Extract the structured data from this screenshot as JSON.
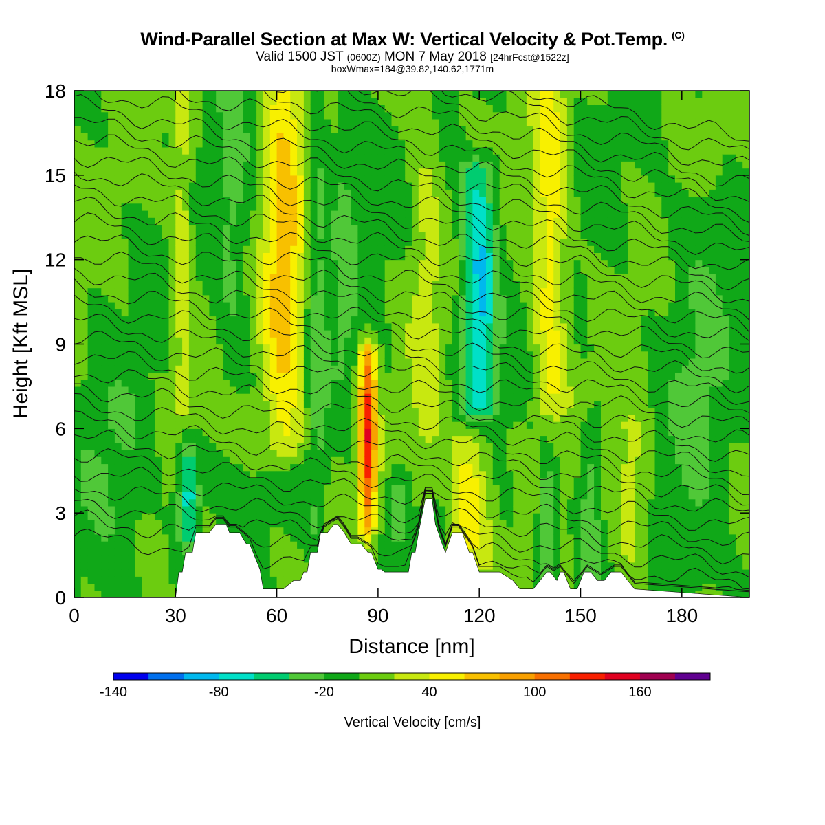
{
  "header": {
    "title": "Wind-Parallel Section at Max W: Vertical Velocity & Pot.Temp.",
    "copyright_mark": "(C)",
    "subtitle_a": "Valid 1500 JST",
    "subtitle_b": "(0600Z)",
    "subtitle_c": "MON 7 May 2018",
    "subtitle_d": "[24hrFcst@1522z]",
    "boxline": "boxWmax=184@39.82,140.62,1771m"
  },
  "chart_data": {
    "type": "heatmap",
    "title": "Wind-Parallel Section at Max W: Vertical Velocity & Pot.Temp.",
    "xlabel": "Distance [nm]",
    "ylabel": "Height [Kft MSL]",
    "xlim": [
      0,
      200
    ],
    "ylim": [
      0,
      18
    ],
    "x_ticks": [
      0,
      30,
      60,
      90,
      120,
      150,
      180
    ],
    "y_ticks": [
      0,
      3,
      6,
      9,
      12,
      15,
      18
    ],
    "colorbar": {
      "label": "Vertical Velocity [cm/s]",
      "tick_labels": [
        -140,
        -80,
        -20,
        40,
        100,
        160
      ],
      "levels": [
        -140,
        -120,
        -100,
        -80,
        -60,
        -40,
        -20,
        0,
        20,
        40,
        60,
        80,
        100,
        120,
        140,
        160,
        180
      ],
      "colors": [
        "#0000ee",
        "#0070ee",
        "#00b8ee",
        "#00e0c8",
        "#00cc70",
        "#50c838",
        "#10a818",
        "#6ccc10",
        "#c8e810",
        "#f8f000",
        "#f8c000",
        "#f8a000",
        "#f87000",
        "#f82000",
        "#e00020",
        "#a00050",
        "#600090"
      ]
    },
    "background_value_cms": 0,
    "updraft_columns": [
      {
        "x": 62,
        "y0": 5.5,
        "y1": 18,
        "width": 6,
        "peak_cms": 70
      },
      {
        "x": 87,
        "y0": 2.8,
        "y1": 8.5,
        "width": 2.5,
        "peak_cms": 130
      },
      {
        "x": 117,
        "y0": 1.5,
        "y1": 5.5,
        "width": 6,
        "peak_cms": 55
      },
      {
        "x": 141,
        "y0": 7,
        "y1": 18,
        "width": 5,
        "peak_cms": 55
      },
      {
        "x": 32,
        "y0": 7,
        "y1": 18,
        "width": 3,
        "peak_cms": 35
      },
      {
        "x": 165,
        "y0": 1.5,
        "y1": 6,
        "width": 6,
        "peak_cms": 35
      },
      {
        "x": 104,
        "y0": 4,
        "y1": 18,
        "width": 5,
        "peak_cms": 25
      }
    ],
    "downdraft_columns": [
      {
        "x": 120,
        "y0": 7,
        "y1": 15,
        "width": 5,
        "peak_cms": -90
      },
      {
        "x": 34,
        "y0": 2.3,
        "y1": 5,
        "width": 3,
        "peak_cms": -80
      },
      {
        "x": 140,
        "y0": 1,
        "y1": 4,
        "width": 2.5,
        "peak_cms": -60
      },
      {
        "x": 96,
        "y0": 2.5,
        "y1": 4,
        "width": 3,
        "peak_cms": -50
      },
      {
        "x": 72,
        "y0": 2,
        "y1": 18,
        "width": 3,
        "peak_cms": -30
      },
      {
        "x": 80,
        "y0": 8,
        "y1": 18,
        "width": 4,
        "peak_cms": -25
      },
      {
        "x": 47,
        "y0": 8,
        "y1": 18,
        "width": 5,
        "peak_cms": -25
      },
      {
        "x": 153,
        "y0": 1,
        "y1": 6,
        "width": 3,
        "peak_cms": -35
      },
      {
        "x": 185,
        "y0": 0.5,
        "y1": 14,
        "width": 10,
        "peak_cms": -20
      },
      {
        "x": 12,
        "y0": 0.5,
        "y1": 7,
        "width": 10,
        "peak_cms": -20
      }
    ],
    "terrain_profile": {
      "x": [
        0,
        30,
        31,
        32,
        33,
        35,
        36,
        40,
        42,
        45,
        46,
        49,
        51,
        52,
        53,
        55,
        56,
        57,
        60,
        62,
        65,
        67,
        68,
        69,
        70,
        72,
        73,
        75,
        77,
        78,
        80,
        82,
        85,
        87,
        88,
        90,
        91,
        92,
        93,
        97,
        99,
        100,
        101,
        102,
        104,
        106,
        107,
        109,
        110,
        112,
        115,
        117,
        118,
        120,
        126,
        130,
        132,
        136,
        138,
        140,
        141,
        143,
        144,
        145,
        147,
        149,
        151,
        153,
        155,
        157,
        159,
        162,
        164,
        166,
        200
      ],
      "y": [
        0,
        0,
        0.9,
        0.9,
        1.6,
        1.6,
        2.3,
        2.3,
        2.6,
        2.6,
        2.3,
        2.3,
        1.9,
        1.9,
        1.6,
        1.0,
        0.3,
        0.3,
        0.3,
        0.3,
        0.6,
        0.6,
        0.9,
        0.9,
        1.6,
        1.6,
        2.3,
        2.3,
        2.6,
        2.6,
        2.3,
        1.9,
        1.9,
        1.6,
        1.6,
        1.0,
        1.0,
        0.9,
        0.9,
        0.9,
        0.9,
        1.6,
        1.6,
        2.3,
        3.5,
        3.5,
        2.6,
        1.9,
        1.6,
        2.3,
        2.3,
        1.6,
        1.6,
        0.9,
        0.9,
        0.6,
        0.3,
        0.3,
        0.6,
        0.9,
        0.9,
        0.6,
        0.9,
        0.9,
        0.3,
        0.3,
        0.9,
        0.9,
        0.6,
        0.6,
        0.9,
        0.9,
        0.6,
        0.3,
        0
      ]
    },
    "theta_contours": {
      "count": 34,
      "y_start_kft": 0.8,
      "y_spacing_kft": 0.55,
      "slope_kft_per_100nm": -2.2
    }
  }
}
